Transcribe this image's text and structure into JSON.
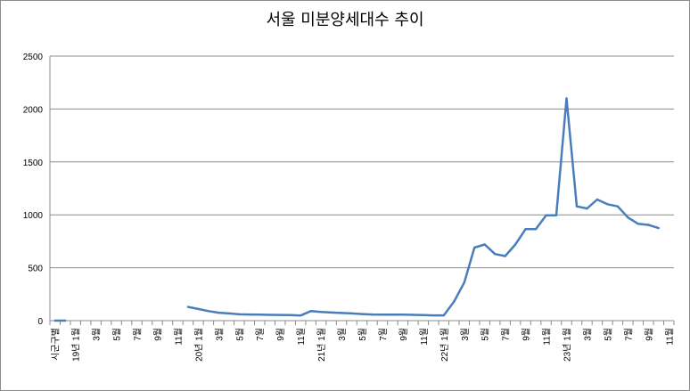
{
  "chart_data": {
    "type": "line",
    "title": "서울 미분양세대수 추이",
    "xlabel": "",
    "ylabel": "",
    "ylim": [
      0,
      2500
    ],
    "yticks": [
      "0",
      "500",
      "1000",
      "1500",
      "2000",
      "2500"
    ],
    "grid": true,
    "legend": "none",
    "line_color": "#4a7ebb",
    "categories": [
      "시군구별",
      "19년 1월",
      "2월",
      "3월",
      "4월",
      "5월",
      "6월",
      "7월",
      "8월",
      "9월",
      "10월",
      "11월",
      "12월",
      "20년 1월",
      "2월",
      "3월",
      "4월",
      "5월",
      "6월",
      "7월",
      "8월",
      "9월",
      "10월",
      "11월",
      "12월",
      "21년 1월",
      "2월",
      "3월",
      "4월",
      "5월",
      "6월",
      "7월",
      "8월",
      "9월",
      "10월",
      "11월",
      "12월",
      "22년 1월",
      "2월",
      "3월",
      "4월",
      "5월",
      "6월",
      "7월",
      "8월",
      "9월",
      "10월",
      "11월",
      "12월",
      "23년 1월",
      "2월",
      "3월",
      "4월",
      "5월",
      "6월",
      "7월",
      "8월",
      "9월",
      "10월",
      "11월",
      "12월"
    ],
    "tick_labels": [
      "시군구별",
      "19년 1월",
      "3월",
      "5월",
      "7월",
      "9월",
      "11월",
      "20년 1월",
      "3월",
      "5월",
      "7월",
      "9월",
      "11월",
      "21년 1월",
      "3월",
      "5월",
      "7월",
      "9월",
      "11월",
      "22년 1월",
      "3월",
      "5월",
      "7월",
      "9월",
      "11월",
      "23년 1월",
      "3월",
      "5월",
      "7월",
      "9월",
      "11월"
    ],
    "series": [
      {
        "values": [
          0,
          0,
          null,
          null,
          null,
          null,
          null,
          null,
          null,
          null,
          null,
          null,
          null,
          130,
          110,
          90,
          75,
          68,
          60,
          58,
          57,
          55,
          54,
          52,
          48,
          90,
          82,
          77,
          72,
          68,
          62,
          58,
          56,
          56,
          56,
          55,
          53,
          50,
          50,
          180,
          360,
          690,
          720,
          630,
          610,
          720,
          865,
          865,
          995,
          995,
          2100,
          1080,
          1060,
          1145,
          1100,
          1080,
          975,
          915,
          905,
          875,
          null
        ]
      }
    ]
  }
}
